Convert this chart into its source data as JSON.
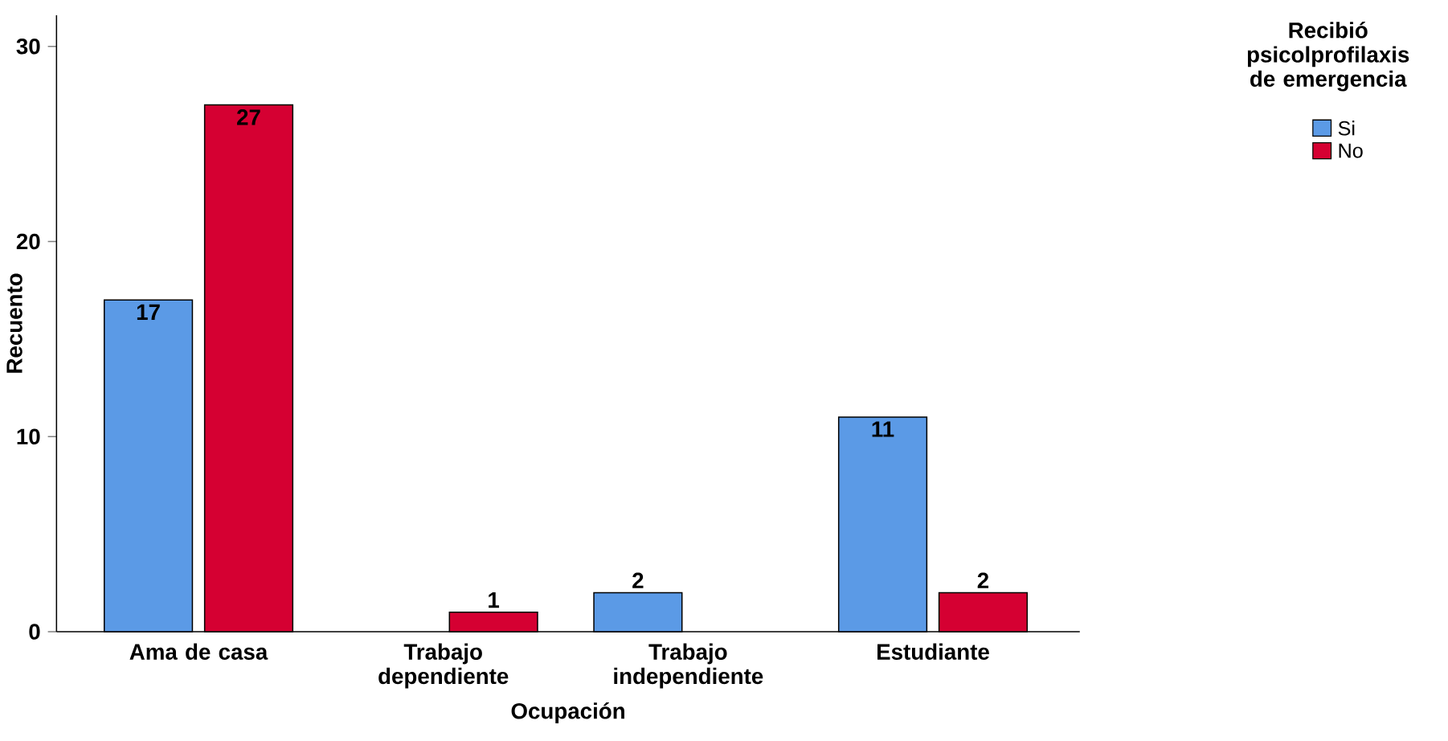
{
  "chart_data": {
    "type": "bar",
    "xlabel": "Ocupación",
    "ylabel": "Recuento",
    "legend_title": "Recibió psicolprofilaxis de emergencia",
    "categories": [
      "Ama de casa",
      "Trabajo dependiente",
      "Trabajo independiente",
      "Estudiante"
    ],
    "series": [
      {
        "name": "Si",
        "color": "#5b9ae6",
        "values": [
          17,
          null,
          2,
          11
        ]
      },
      {
        "name": "No",
        "color": "#d50032",
        "values": [
          27,
          1,
          null,
          2
        ]
      }
    ],
    "ylim": [
      0,
      31.6
    ],
    "yticks": [
      0,
      10,
      20,
      30
    ],
    "data_labels": true,
    "legend": "top right",
    "grid": false
  }
}
